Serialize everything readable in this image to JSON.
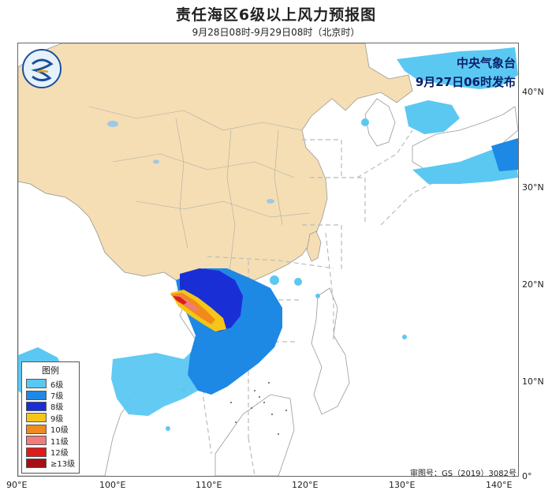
{
  "title": "责任海区6级以上风力预报图",
  "subtitle": "9月28日08时-9月29日08时（北京时）",
  "issuer": {
    "name": "中央气象台",
    "issue_time": "9月27日06时发布"
  },
  "axes": {
    "latitude_labels": [
      "40°N",
      "30°N",
      "20°N",
      "10°N",
      "0°"
    ],
    "longitude_labels": [
      "90°E",
      "100°E",
      "110°E",
      "120°E",
      "130°E",
      "140°E"
    ]
  },
  "legend": {
    "title": "图例",
    "items": [
      {
        "label": "6级",
        "color": "#5bc8f2"
      },
      {
        "label": "7级",
        "color": "#1e88e5"
      },
      {
        "label": "8级",
        "color": "#1a2ed6"
      },
      {
        "label": "9级",
        "color": "#f5c518"
      },
      {
        "label": "10级",
        "color": "#f08a1c"
      },
      {
        "label": "11级",
        "color": "#f07c7c"
      },
      {
        "label": "12级",
        "color": "#e01a1a"
      },
      {
        "label": "≥13级",
        "color": "#a50f15"
      }
    ]
  },
  "approval_number": "审图号：GS（2019）3082号",
  "logo_icon": "cma-logo-icon",
  "colors": {
    "land_china": "#f5deb3",
    "land_other": "#ffffff",
    "sea": "#ffffff",
    "boundary": "#888888"
  }
}
